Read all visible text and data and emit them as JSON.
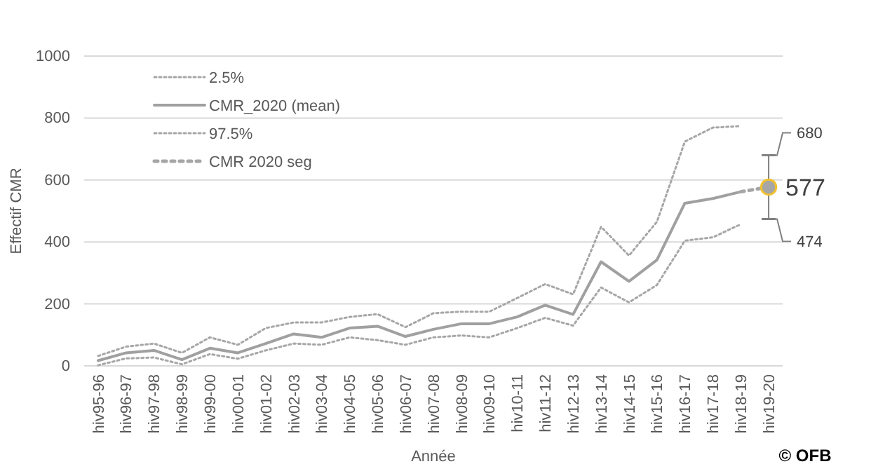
{
  "chart_data": {
    "type": "line",
    "xlabel": "Année",
    "ylabel": "Effectif CMR",
    "categories": [
      "hiv95-96",
      "hiv96-97",
      "hiv97-98",
      "hiv98-99",
      "hiv99-00",
      "hiv00-01",
      "hiv01-02",
      "hiv02-03",
      "hiv03-04",
      "hiv04-05",
      "hiv05-06",
      "hiv06-07",
      "hiv07-08",
      "hiv08-09",
      "hiv09-10",
      "hiv10-11",
      "hiv11-12",
      "hiv12-13",
      "hiv13-14",
      "hiv14-15",
      "hiv15-16",
      "hiv16-17",
      "hiv17-18",
      "hiv18-19",
      "hiv19-20"
    ],
    "series": [
      {
        "name": "2.5%",
        "color": "#a6a6a6",
        "line_style": "dotted",
        "values": [
          2,
          24,
          27,
          5,
          38,
          23,
          50,
          72,
          68,
          92,
          83,
          68,
          92,
          98,
          92,
          122,
          155,
          130,
          253,
          205,
          261,
          404,
          415,
          457,
          null
        ]
      },
      {
        "name": "CMR_2020 (mean)",
        "color": "#a0a0a0",
        "line_style": "solid",
        "values": [
          17,
          42,
          50,
          20,
          57,
          42,
          72,
          103,
          92,
          122,
          128,
          95,
          118,
          136,
          136,
          158,
          196,
          166,
          336,
          273,
          342,
          525,
          540,
          562,
          null
        ]
      },
      {
        "name": "97.5%",
        "color": "#a6a6a6",
        "line_style": "dotted",
        "values": [
          32,
          62,
          72,
          42,
          92,
          68,
          122,
          140,
          140,
          158,
          167,
          125,
          170,
          175,
          175,
          219,
          264,
          231,
          449,
          356,
          465,
          724,
          769,
          774,
          null
        ]
      },
      {
        "name": "CMR 2020 seg",
        "color": "#a6a6a6",
        "line_style": "dashed",
        "marker": "circle",
        "values": [
          null,
          null,
          null,
          null,
          null,
          null,
          null,
          null,
          null,
          null,
          null,
          null,
          null,
          null,
          null,
          null,
          null,
          null,
          null,
          null,
          null,
          null,
          null,
          562,
          577
        ],
        "errors": [
          null,
          null,
          null,
          null,
          null,
          null,
          null,
          null,
          null,
          null,
          null,
          null,
          null,
          null,
          null,
          null,
          null,
          null,
          null,
          null,
          null,
          null,
          null,
          null,
          [
            474,
            680
          ]
        ],
        "value_labels": [
          null,
          null,
          null,
          null,
          null,
          null,
          null,
          null,
          null,
          null,
          null,
          null,
          null,
          null,
          null,
          null,
          null,
          null,
          null,
          null,
          null,
          null,
          null,
          null,
          "577"
        ]
      }
    ],
    "ylim": [
      0,
      1000
    ],
    "yticks": [
      0,
      200,
      400,
      600,
      800,
      1000
    ],
    "grid": "y",
    "legend": "top left",
    "annotations": [
      "680",
      "474",
      "© OFB"
    ]
  }
}
